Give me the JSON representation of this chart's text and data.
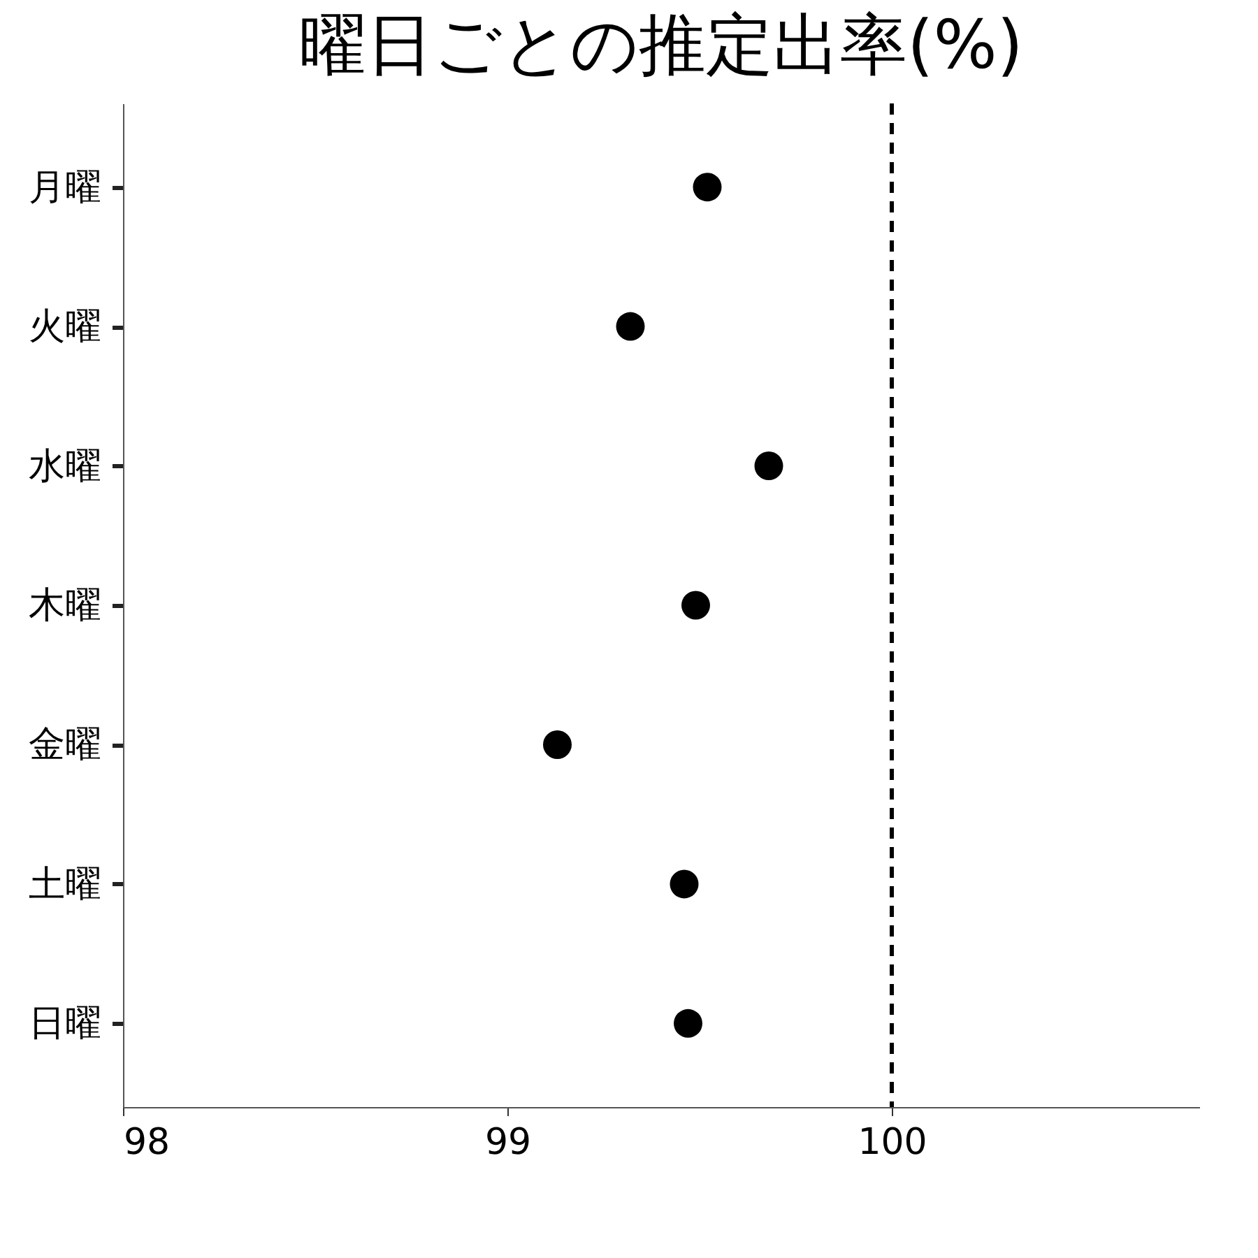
{
  "chart_data": {
    "type": "scatter",
    "title": "曜日ごとの推定出率(%)",
    "categories": [
      "月曜",
      "火曜",
      "水曜",
      "木曜",
      "金曜",
      "土曜",
      "日曜"
    ],
    "orientation": "horizontal",
    "series": [
      {
        "color": "#000000",
        "values": [
          99.52,
          99.32,
          99.68,
          99.49,
          99.13,
          99.46,
          99.47
        ]
      }
    ],
    "xlim": [
      98,
      100.8
    ],
    "xticks": [
      98,
      99,
      100
    ],
    "ref_lines": [
      {
        "axis": "x",
        "value": 100,
        "color": "#000000",
        "line_style": "dashed"
      }
    ],
    "grid": false,
    "marker": "circle"
  }
}
